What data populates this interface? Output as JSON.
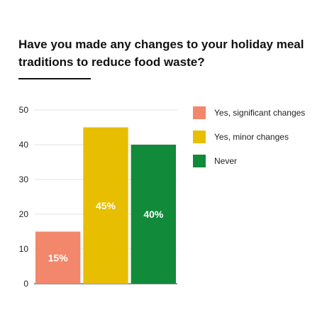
{
  "chart_data": {
    "type": "bar",
    "title": "Have you made any changes to your holiday meal traditions to reduce food waste?",
    "categories": [
      "Yes, significant changes",
      "Yes, minor changes",
      "Never"
    ],
    "values": [
      15,
      45,
      40
    ],
    "data_labels": [
      "15%",
      "45%",
      "40%"
    ],
    "colors": [
      "#F2876B",
      "#E8BE00",
      "#118A3A"
    ],
    "ylim": [
      0,
      50
    ],
    "yticks": [
      0,
      10,
      20,
      30,
      40,
      50
    ],
    "grid": true,
    "legend": "right",
    "xlabel": "",
    "ylabel": ""
  }
}
